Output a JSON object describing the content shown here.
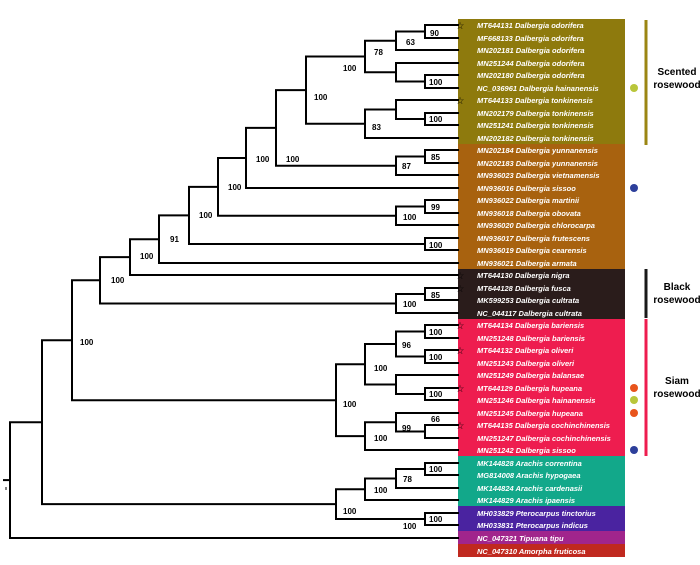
{
  "colors": {
    "scented_band": "#8e7a0d",
    "scented_bar": "#9b8613",
    "mid_band": "#a8620f",
    "black_band": "#2a1c1b",
    "siam_band": "#ee1d4f",
    "arachis_band": "#12a88a",
    "ptero_band": "#4a23a0",
    "tipuana_band": "#a1258c",
    "amorpha_band": "#c0291f",
    "dot_olive": "#b9c63b",
    "dot_blue": "#2d3f9b",
    "dot_orange": "#e8541c"
  },
  "icons": {
    "star": "star-icon",
    "dot": "dot-icon"
  },
  "taxa": [
    "MT644131 Dalbergia odorifera",
    "MF668133 Dalbergia odorifera",
    "MN202181 Dalbergia odorifera",
    "MN251244 Dalbergia odorifera",
    "MN202180 Dalbergia odorifera",
    "NC_036961 Dalbergia hainanensis",
    "MT644133 Dalbergia tonkinensis",
    "MN202179 Dalbergia tonkinensis",
    "MN251241 Dalbergia tonkinensis",
    "MN202182 Dalbergia tonkinensis",
    "MN202184 Dalbergia yunnanensis",
    "MN202183 Dalbergia yunnanensis",
    "MN936023 Dalbergia vietnamensis",
    "MN936016 Dalbergia sissoo",
    "MN936022 Dalbergia martinii",
    "MN936018 Dalbergia obovata",
    "MN936020 Dalbergia chlorocarpa",
    "MN936017 Dalbergia frutescens",
    "MN936019 Dalbergia cearensis",
    "MN936021 Dalbergia armata",
    "MT644130 Dalbergia nigra",
    "MT644128 Dalbergia fusca",
    "MK599253 Dalbergia cultrata",
    "NC_044117 Dalbergia cultrata",
    "MT644134 Dalbergia bariensis",
    "MN251248 Dalbergia bariensis",
    "MT644132 Dalbergia oliveri",
    "MN251243 Dalbergia oliveri",
    "MN251249 Dalbergia balansae",
    "MT644129 Dalbergia hupeana",
    "MN251246 Dalbergia hainanensis",
    "MN251245 Dalbergia hupeana",
    "MT644135 Dalbergia cochinchinensis",
    "MN251247 Dalbergia cochinchinensis",
    "MN251242 Dalbergia sissoo",
    "MK144828 Arachis correntina",
    "MG814008 Arachis hypogaea",
    "MK144824 Arachis cardenasii",
    "MK144829 Arachis ipaensis",
    "MH033829 Pterocarpus tinctorius",
    "MH033831 Pterocarpus indicus",
    "NC_047321 Tipuana tipu",
    "NC_047310 Amorpha fruticosa"
  ],
  "bootstrap": [
    "90",
    "63",
    "78",
    "100",
    "100",
    "100",
    "83",
    "100",
    "100",
    "85",
    "87",
    "100",
    "100",
    "99",
    "100",
    "100",
    "91",
    "100",
    "100",
    "85",
    "100",
    "100",
    "96",
    "100",
    "100",
    "100",
    "100",
    "66",
    "99",
    "100",
    "100",
    "78",
    "100",
    "100",
    "100",
    "100",
    "100"
  ],
  "groups": {
    "scented": {
      "line1": "Scented",
      "line2": "rosewood"
    },
    "black": {
      "line1": "Black",
      "line2": "rosewood"
    },
    "siam": {
      "line1": "Siam",
      "line2": "rosewood"
    }
  }
}
